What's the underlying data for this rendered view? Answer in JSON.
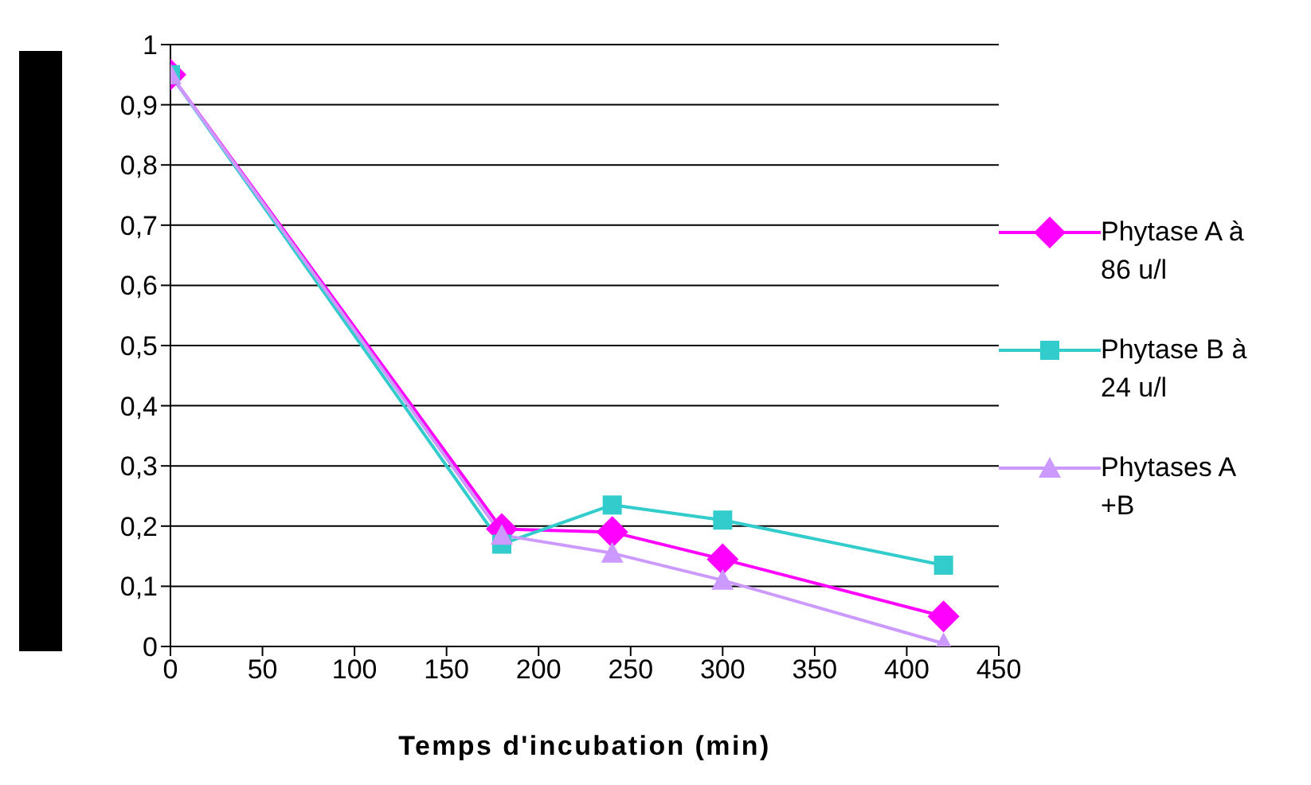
{
  "chart_data": {
    "type": "line",
    "xlabel": "Temps d'incubation (min)",
    "x": [
      0,
      180,
      240,
      300,
      420
    ],
    "series": [
      {
        "name": "Phytase A à 86 u/l",
        "color": "#ff00ff",
        "marker": "diamond",
        "values": [
          0.95,
          0.195,
          0.19,
          0.145,
          0.05
        ]
      },
      {
        "name": "Phytase B à 24 u/l",
        "color": "#33cccc",
        "marker": "square",
        "values": [
          0.95,
          0.17,
          0.235,
          0.21,
          0.135
        ]
      },
      {
        "name": "Phytases A +B",
        "color": "#cc99ff",
        "marker": "triangle",
        "values": [
          0.95,
          0.185,
          0.155,
          0.11,
          0.005
        ]
      }
    ],
    "xlim": [
      0,
      450
    ],
    "xticks": [
      0,
      50,
      100,
      150,
      200,
      250,
      300,
      350,
      400,
      450
    ],
    "ylim": [
      0,
      1
    ],
    "yticks": [
      {
        "value": 0,
        "label": "0"
      },
      {
        "value": 0.1,
        "label": "0,1"
      },
      {
        "value": 0.2,
        "label": "0,2"
      },
      {
        "value": 0.3,
        "label": "0,3"
      },
      {
        "value": 0.4,
        "label": "0,4"
      },
      {
        "value": 0.5,
        "label": "0,5"
      },
      {
        "value": 0.6,
        "label": "0,6"
      },
      {
        "value": 0.7,
        "label": "0,7"
      },
      {
        "value": 0.8,
        "label": "0,8"
      },
      {
        "value": 0.9,
        "label": "0,9"
      },
      {
        "value": 1,
        "label": "1"
      }
    ],
    "grid": "y",
    "legend": "right",
    "line_style": "solid"
  }
}
